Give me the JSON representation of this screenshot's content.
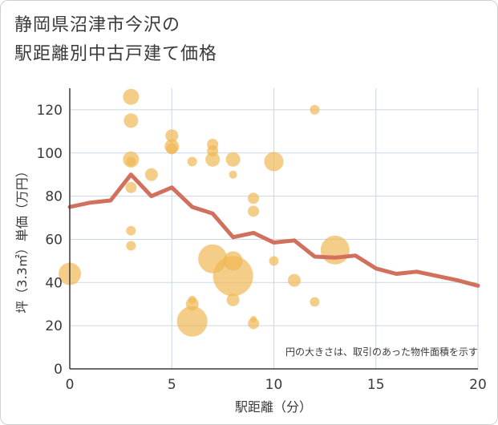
{
  "title_line1": "静岡県沼津市今沢の",
  "title_line2": "駅距離別中古戸建て価格",
  "note": "円の大きさは、取引のあった物件面積を示す",
  "colors": {
    "bubble": "#f0b855",
    "line": "#d2705e",
    "grid": "#c9d7e8",
    "axis": "#3a3a3a"
  },
  "chart_data": {
    "type": "scatter",
    "xlabel": "駅距離（分）",
    "ylabel": "坪（3.3㎡）単価（万円）",
    "xlim": [
      0,
      20
    ],
    "ylim": [
      0,
      130
    ],
    "x_ticks": [
      "0",
      "5",
      "10",
      "15",
      "20"
    ],
    "y_ticks": [
      "0",
      "20",
      "40",
      "60",
      "80",
      "100",
      "120"
    ],
    "grid": true,
    "bubbles": [
      {
        "x": 0,
        "y": 44,
        "size": 14
      },
      {
        "x": 3,
        "y": 126,
        "size": 10
      },
      {
        "x": 3,
        "y": 115,
        "size": 9
      },
      {
        "x": 3,
        "y": 97,
        "size": 10
      },
      {
        "x": 3,
        "y": 96,
        "size": 6
      },
      {
        "x": 3,
        "y": 84,
        "size": 7
      },
      {
        "x": 3,
        "y": 64,
        "size": 6
      },
      {
        "x": 3,
        "y": 57,
        "size": 6
      },
      {
        "x": 4,
        "y": 90,
        "size": 8
      },
      {
        "x": 5,
        "y": 108,
        "size": 8
      },
      {
        "x": 5,
        "y": 103,
        "size": 9
      },
      {
        "x": 5,
        "y": 102,
        "size": 7
      },
      {
        "x": 6,
        "y": 96,
        "size": 6
      },
      {
        "x": 6,
        "y": 32,
        "size": 5
      },
      {
        "x": 6,
        "y": 30,
        "size": 8
      },
      {
        "x": 6,
        "y": 22,
        "size": 19
      },
      {
        "x": 7,
        "y": 104,
        "size": 7
      },
      {
        "x": 7,
        "y": 101,
        "size": 7
      },
      {
        "x": 7,
        "y": 97,
        "size": 9
      },
      {
        "x": 7,
        "y": 51,
        "size": 18
      },
      {
        "x": 8,
        "y": 97,
        "size": 9
      },
      {
        "x": 8,
        "y": 90,
        "size": 5
      },
      {
        "x": 8,
        "y": 50,
        "size": 12
      },
      {
        "x": 8,
        "y": 43,
        "size": 25
      },
      {
        "x": 8,
        "y": 32,
        "size": 8
      },
      {
        "x": 9,
        "y": 79,
        "size": 7
      },
      {
        "x": 9,
        "y": 73,
        "size": 7
      },
      {
        "x": 9,
        "y": 23,
        "size": 4
      },
      {
        "x": 9,
        "y": 21,
        "size": 7
      },
      {
        "x": 10,
        "y": 96,
        "size": 12
      },
      {
        "x": 10,
        "y": 50,
        "size": 6
      },
      {
        "x": 11,
        "y": 41,
        "size": 8
      },
      {
        "x": 12,
        "y": 120,
        "size": 6
      },
      {
        "x": 12,
        "y": 31,
        "size": 6
      },
      {
        "x": 13,
        "y": 55,
        "size": 18
      }
    ],
    "trend": {
      "x": [
        0,
        1,
        2,
        3,
        4,
        5,
        6,
        7,
        8,
        9,
        10,
        11,
        12,
        13,
        14,
        15,
        16,
        17,
        18,
        19,
        20
      ],
      "y": [
        75,
        77,
        78,
        90,
        80,
        84,
        75,
        72,
        61,
        63,
        58.5,
        59.5,
        52,
        51.5,
        52.5,
        46.5,
        44,
        45,
        43,
        41,
        38.5
      ]
    }
  }
}
